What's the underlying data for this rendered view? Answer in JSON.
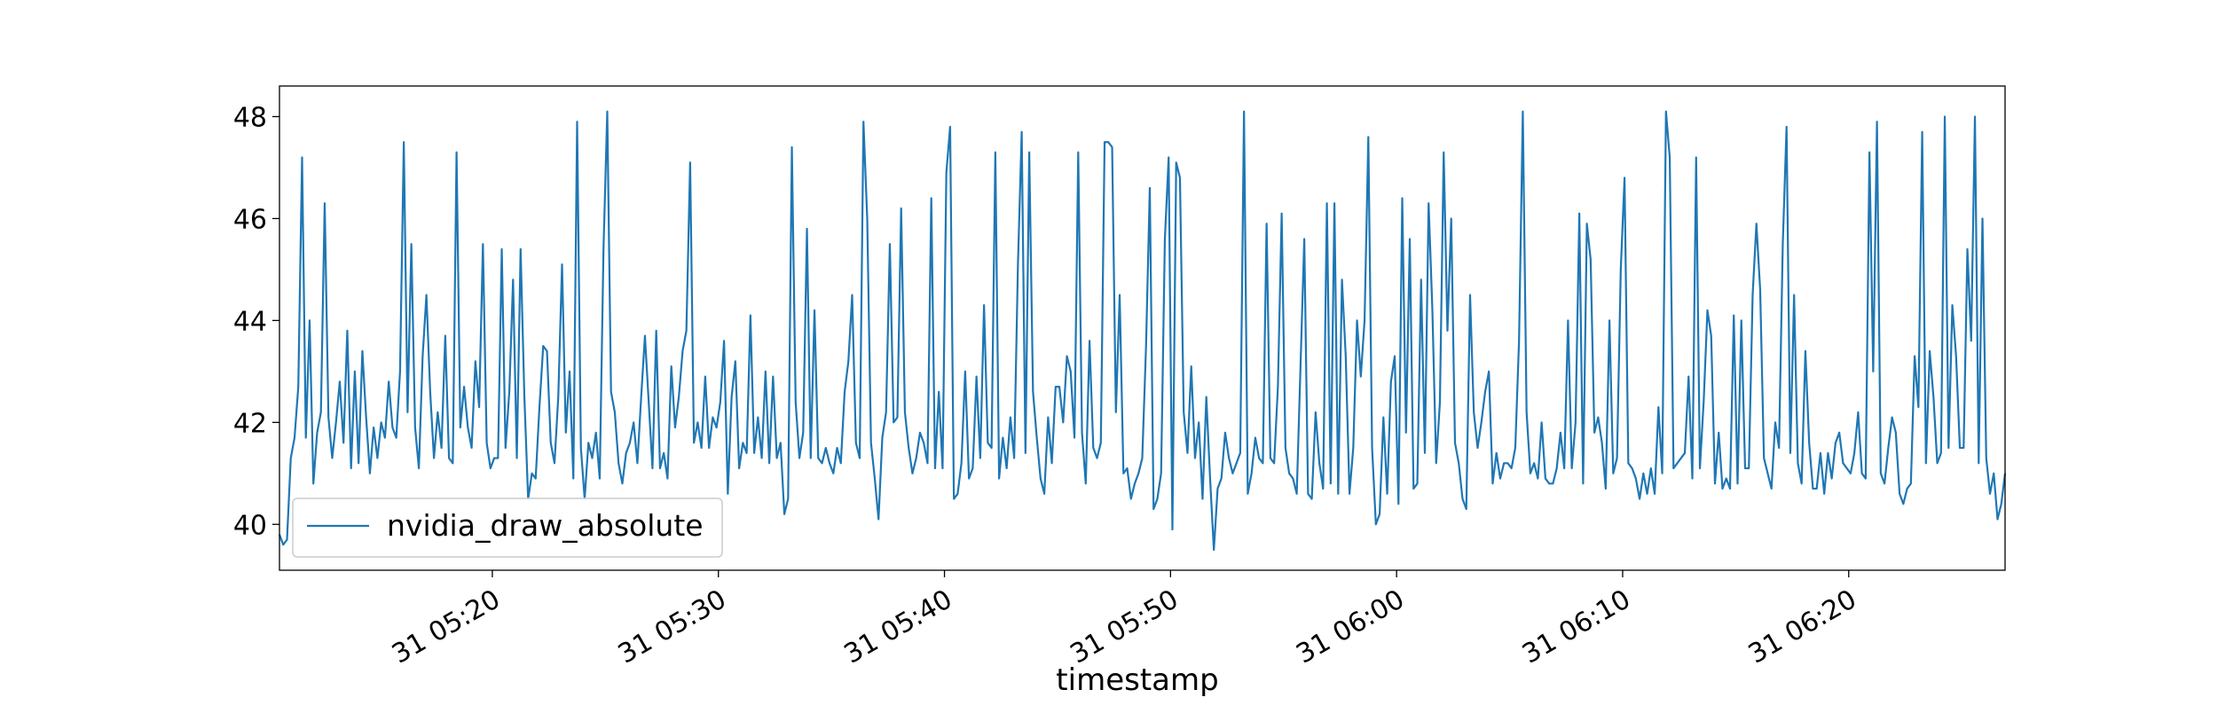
{
  "chart_data": {
    "type": "line",
    "title": "",
    "xlabel": "timestamp",
    "ylabel": "",
    "x_range": [
      "31 05:10:35",
      "31 06:28:35"
    ],
    "ylim": [
      39.1,
      48.6
    ],
    "grid": false,
    "legend_position": "lower-left",
    "x_ticks": [
      "31 05:20",
      "31 05:30",
      "31 05:40",
      "31 05:50",
      "31 06:00",
      "31 06:10",
      "31 06:20"
    ],
    "x_tick_minutes": [
      20,
      30,
      40,
      50,
      60,
      70,
      80
    ],
    "y_ticks": [
      40,
      42,
      44,
      46,
      48
    ],
    "y_tick_labels": [
      "40",
      "42",
      "44",
      "46",
      "48"
    ],
    "sampling": "one reading every ~10 seconds from 31 05:10:35 to 31 06:28:35",
    "series": [
      {
        "name": "nvidia_draw_absolute",
        "color": "#1f77b4",
        "start": "31 05:10:35",
        "step_seconds": 10,
        "values": [
          39.8,
          39.6,
          39.7,
          41.3,
          41.7,
          42.7,
          47.2,
          41.7,
          44.0,
          40.8,
          41.8,
          42.2,
          46.3,
          42.1,
          41.3,
          42.0,
          42.8,
          41.6,
          43.8,
          41.1,
          43.0,
          41.2,
          43.4,
          42.1,
          41.0,
          41.9,
          41.3,
          42.0,
          41.7,
          42.8,
          41.9,
          41.7,
          43.0,
          47.5,
          42.2,
          45.5,
          41.9,
          41.1,
          43.3,
          44.5,
          42.6,
          41.3,
          42.2,
          41.5,
          43.7,
          41.3,
          41.2,
          47.3,
          41.9,
          42.7,
          41.9,
          41.5,
          43.2,
          42.3,
          45.5,
          41.6,
          41.1,
          41.3,
          41.3,
          45.4,
          41.5,
          42.6,
          44.8,
          41.3,
          45.4,
          42.5,
          40.5,
          41.0,
          40.9,
          42.3,
          43.5,
          43.4,
          41.6,
          41.2,
          42.5,
          45.1,
          41.8,
          43.0,
          40.9,
          47.9,
          41.5,
          40.5,
          41.6,
          41.3,
          41.8,
          40.9,
          45.4,
          48.1,
          42.6,
          42.2,
          41.2,
          40.8,
          41.4,
          41.6,
          42.0,
          41.2,
          42.5,
          43.7,
          42.4,
          41.1,
          43.8,
          41.1,
          41.4,
          40.9,
          43.1,
          41.9,
          42.5,
          43.4,
          43.8,
          47.1,
          41.6,
          42.0,
          41.5,
          42.9,
          41.5,
          42.1,
          41.9,
          42.4,
          43.6,
          40.6,
          42.5,
          43.2,
          41.1,
          41.6,
          41.4,
          44.1,
          41.4,
          42.1,
          41.3,
          43.0,
          41.2,
          42.9,
          41.3,
          41.6,
          40.2,
          40.5,
          47.4,
          42.4,
          41.3,
          41.8,
          45.8,
          41.3,
          44.2,
          41.3,
          41.2,
          41.5,
          41.2,
          41.0,
          41.5,
          41.2,
          42.6,
          43.2,
          44.5,
          41.6,
          41.3,
          47.9,
          46.0,
          41.6,
          40.9,
          40.1,
          41.7,
          42.2,
          45.5,
          42.0,
          42.1,
          46.2,
          42.2,
          41.5,
          41.0,
          41.3,
          41.8,
          41.6,
          41.2,
          46.4,
          41.1,
          42.6,
          41.1,
          46.9,
          47.8,
          40.5,
          40.6,
          41.2,
          43.0,
          40.9,
          41.1,
          42.9,
          41.3,
          44.3,
          41.6,
          41.5,
          47.3,
          40.9,
          41.7,
          41.1,
          42.1,
          41.3,
          45.1,
          47.7,
          41.4,
          47.3,
          42.6,
          41.7,
          40.9,
          40.6,
          42.1,
          41.2,
          42.7,
          42.7,
          42.0,
          43.3,
          43.0,
          41.7,
          47.3,
          41.8,
          40.8,
          43.6,
          41.5,
          41.3,
          41.6,
          47.5,
          47.5,
          47.4,
          42.2,
          44.5,
          41.0,
          41.1,
          40.5,
          40.8,
          41.0,
          41.3,
          43.5,
          46.6,
          40.3,
          40.5,
          41.0,
          45.6,
          47.2,
          39.9,
          47.1,
          46.8,
          42.2,
          41.4,
          43.1,
          41.3,
          42.0,
          40.5,
          42.5,
          40.9,
          39.5,
          40.7,
          40.9,
          41.8,
          41.3,
          41.0,
          41.2,
          41.4,
          48.1,
          40.6,
          41.0,
          41.7,
          41.3,
          41.2,
          45.9,
          41.3,
          41.2,
          42.7,
          46.1,
          41.5,
          41.0,
          40.9,
          40.6,
          43.1,
          45.6,
          40.6,
          40.5,
          42.2,
          41.2,
          40.7,
          46.3,
          40.8,
          46.3,
          40.6,
          44.8,
          43.3,
          40.6,
          41.5,
          44.0,
          42.9,
          44.0,
          47.6,
          41.5,
          40.0,
          40.2,
          42.1,
          40.6,
          42.8,
          43.3,
          40.4,
          46.4,
          41.8,
          45.6,
          40.7,
          40.8,
          44.8,
          41.4,
          46.3,
          44.2,
          41.2,
          42.4,
          47.3,
          43.8,
          46.0,
          41.6,
          41.2,
          40.5,
          40.3,
          44.5,
          42.2,
          41.5,
          42.0,
          42.6,
          43.0,
          40.8,
          41.4,
          40.9,
          41.2,
          41.2,
          41.1,
          41.5,
          43.6,
          48.1,
          42.2,
          41.0,
          41.2,
          40.9,
          42.0,
          40.9,
          40.8,
          40.8,
          41.1,
          41.8,
          41.1,
          44.0,
          41.1,
          42.0,
          46.1,
          40.8,
          45.9,
          45.2,
          41.8,
          42.1,
          41.6,
          40.7,
          44.0,
          41.0,
          41.3,
          45.0,
          46.8,
          41.2,
          41.1,
          40.9,
          40.5,
          41.0,
          40.6,
          41.1,
          40.6,
          42.3,
          41.0,
          48.1,
          47.2,
          41.1,
          41.2,
          41.3,
          41.4,
          42.9,
          40.9,
          47.2,
          41.1,
          42.4,
          44.2,
          43.7,
          40.8,
          41.8,
          40.7,
          40.9,
          40.7,
          44.1,
          40.8,
          44.0,
          41.1,
          41.1,
          44.5,
          45.9,
          44.6,
          41.3,
          41.0,
          40.7,
          42.0,
          41.5,
          45.5,
          47.8,
          41.4,
          44.5,
          41.2,
          40.8,
          43.4,
          41.6,
          40.7,
          40.7,
          41.4,
          40.6,
          41.4,
          40.9,
          41.6,
          41.8,
          41.2,
          41.1,
          41.0,
          41.4,
          42.2,
          41.0,
          40.9,
          47.3,
          43.0,
          47.9,
          41.0,
          40.8,
          41.5,
          42.1,
          41.8,
          40.6,
          40.4,
          40.7,
          40.8,
          43.3,
          42.3,
          47.7,
          41.2,
          43.4,
          42.5,
          41.2,
          41.4,
          48.0,
          41.5,
          44.3,
          43.3,
          41.5,
          41.5,
          45.4,
          43.6,
          48.0,
          41.2,
          46.0,
          41.3,
          40.6,
          41.0,
          40.1,
          40.4,
          41.0
        ]
      }
    ]
  }
}
